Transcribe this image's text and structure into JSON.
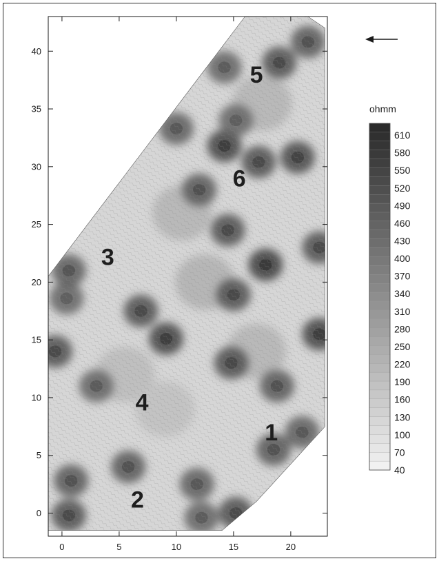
{
  "chart_data": {
    "type": "heatmap",
    "title": "",
    "xlabel": "",
    "ylabel": "",
    "xlim": [
      -1.2,
      23.2
    ],
    "ylim": [
      -2,
      43
    ],
    "x_ticks": [
      0,
      5,
      10,
      15,
      20
    ],
    "y_ticks": [
      0,
      5,
      10,
      15,
      20,
      25,
      30,
      35,
      40
    ],
    "survey_outline": [
      [
        -1.2,
        -1.5
      ],
      [
        14,
        -1.5
      ],
      [
        17,
        1
      ],
      [
        23,
        7.5
      ],
      [
        23,
        42
      ],
      [
        21.5,
        43
      ],
      [
        16,
        43
      ],
      [
        -1.2,
        20.5
      ]
    ],
    "zone_labels": [
      {
        "label": "1",
        "x": 18.3,
        "y": 7.0
      },
      {
        "label": "2",
        "x": 6.6,
        "y": 1.2
      },
      {
        "label": "3",
        "x": 4.0,
        "y": 22.2
      },
      {
        "label": "4",
        "x": 7.0,
        "y": 9.6
      },
      {
        "label": "5",
        "x": 17.0,
        "y": 38.0
      },
      {
        "label": "6",
        "x": 15.5,
        "y": 29.0
      }
    ],
    "high_resistivity_anomalies": [
      {
        "x": 0.6,
        "y": -0.2,
        "value": 520
      },
      {
        "x": 0.8,
        "y": 2.8,
        "value": 500
      },
      {
        "x": 5.8,
        "y": 4.0,
        "value": 500
      },
      {
        "x": 11.8,
        "y": 2.5,
        "value": 480
      },
      {
        "x": 12.2,
        "y": -0.4,
        "value": 470
      },
      {
        "x": 15.2,
        "y": 0.0,
        "value": 520
      },
      {
        "x": 3.0,
        "y": 11.0,
        "value": 470
      },
      {
        "x": -0.6,
        "y": 14.0,
        "value": 520
      },
      {
        "x": 0.4,
        "y": 18.6,
        "value": 460
      },
      {
        "x": 0.6,
        "y": 21.0,
        "value": 490
      },
      {
        "x": 6.9,
        "y": 17.5,
        "value": 520
      },
      {
        "x": 9.1,
        "y": 15.1,
        "value": 560
      },
      {
        "x": 14.8,
        "y": 13.0,
        "value": 520
      },
      {
        "x": 15.0,
        "y": 18.9,
        "value": 520
      },
      {
        "x": 17.8,
        "y": 21.5,
        "value": 580
      },
      {
        "x": 18.8,
        "y": 11.0,
        "value": 500
      },
      {
        "x": 18.5,
        "y": 5.5,
        "value": 500
      },
      {
        "x": 21.0,
        "y": 7.0,
        "value": 480
      },
      {
        "x": 22.5,
        "y": 15.5,
        "value": 560
      },
      {
        "x": 22.5,
        "y": 23.0,
        "value": 520
      },
      {
        "x": 14.5,
        "y": 24.5,
        "value": 520
      },
      {
        "x": 12.0,
        "y": 28.0,
        "value": 500
      },
      {
        "x": 14.2,
        "y": 31.8,
        "value": 560
      },
      {
        "x": 17.2,
        "y": 30.4,
        "value": 520
      },
      {
        "x": 20.6,
        "y": 30.8,
        "value": 540
      },
      {
        "x": 10.0,
        "y": 33.3,
        "value": 480
      },
      {
        "x": 19.0,
        "y": 39.0,
        "value": 520
      },
      {
        "x": 21.5,
        "y": 40.8,
        "value": 500
      },
      {
        "x": 14.2,
        "y": 38.6,
        "value": 470
      },
      {
        "x": 15.2,
        "y": 34.0,
        "value": 460
      }
    ],
    "low_resistivity_areas": [
      {
        "x": 5.5,
        "y": 12.0,
        "value": 200
      },
      {
        "x": 9.0,
        "y": 9.0,
        "value": 190
      },
      {
        "x": 17.0,
        "y": 14.0,
        "value": 220
      },
      {
        "x": 12.5,
        "y": 20.0,
        "value": 230
      },
      {
        "x": 17.5,
        "y": 35.5,
        "value": 220
      },
      {
        "x": 10.5,
        "y": 26.0,
        "value": 220
      }
    ],
    "colorbar": {
      "unit": "ohmm",
      "min": 40,
      "max": 630,
      "step": 15,
      "labels": [
        610,
        580,
        550,
        520,
        490,
        460,
        430,
        400,
        370,
        340,
        310,
        280,
        250,
        220,
        190,
        160,
        130,
        100,
        70,
        40
      ]
    },
    "direction_arrow": "left"
  }
}
